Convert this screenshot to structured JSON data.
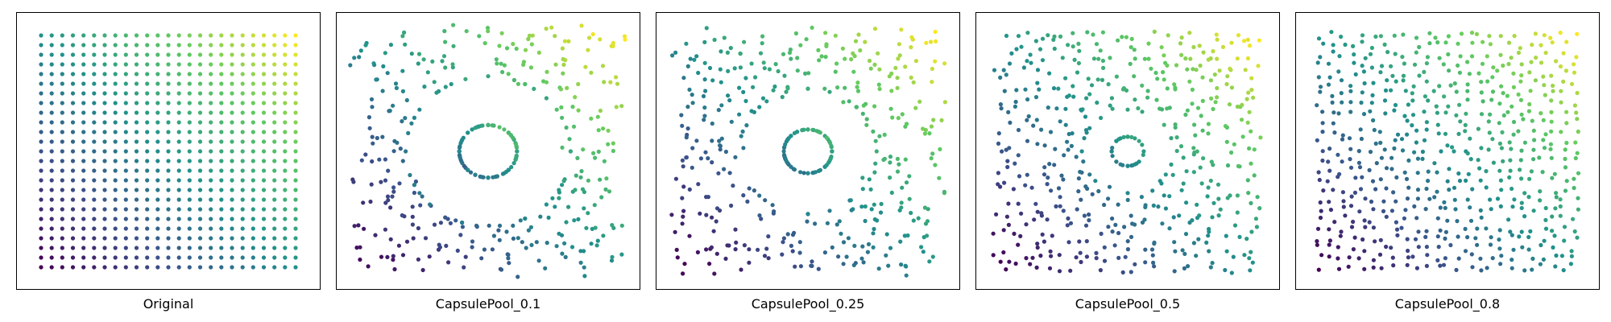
{
  "chart_data": [
    {
      "type": "scatter",
      "title": "Original",
      "variant": "grid",
      "color_map": "viridis"
    },
    {
      "type": "scatter",
      "title": "CapsulePool_0.1",
      "variant": "pool",
      "ratio": 0.1,
      "color_map": "viridis"
    },
    {
      "type": "scatter",
      "title": "CapsulePool_0.25",
      "variant": "pool",
      "ratio": 0.25,
      "color_map": "viridis"
    },
    {
      "type": "scatter",
      "title": "CapsulePool_0.5",
      "variant": "pool",
      "ratio": 0.5,
      "color_map": "viridis"
    },
    {
      "type": "scatter",
      "title": "CapsulePool_0.8",
      "variant": "pool",
      "ratio": 0.8,
      "color_map": "viridis"
    }
  ],
  "colors": {
    "viridis_low": "#440154",
    "viridis_mid": "#21918c",
    "viridis_high": "#fde725"
  }
}
